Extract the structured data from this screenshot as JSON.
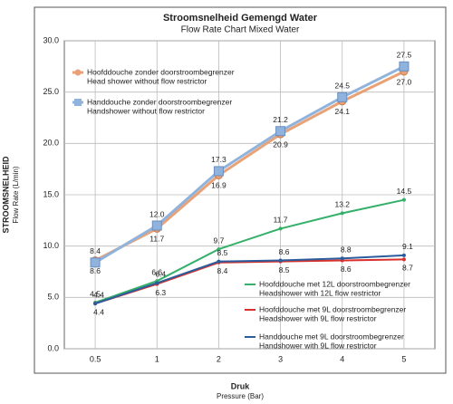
{
  "chart_data": {
    "type": "line",
    "title": "Stroomsnelheid Gemengd Water",
    "subtitle": "Flow Rate Chart Mixed Water",
    "y_label": "STROOMSNELHEID",
    "y_sublabel": "Flow Rate (L/min)",
    "x_label": "Druk",
    "x_sublabel": "Pressure (Bar)",
    "categories": [
      "0.5",
      "1",
      "2",
      "3",
      "4",
      "5"
    ],
    "ylim": [
      0,
      30
    ],
    "yticks": [
      {
        "value": 0,
        "label": "0.0"
      },
      {
        "value": 5,
        "label": "5.0"
      },
      {
        "value": 10,
        "label": "10.0"
      },
      {
        "value": 15,
        "label": "15.0"
      },
      {
        "value": 20,
        "label": "20.0"
      },
      {
        "value": 25,
        "label": "25.0"
      },
      {
        "value": 30,
        "label": "30.0"
      }
    ],
    "grid": true,
    "series": [
      {
        "name": "Hoofddouche zonder doorstroombegrenzer",
        "name_en": "Head shower without flow restrictor",
        "color": "#e9a277",
        "marker": "circle",
        "values": [
          8.6,
          11.7,
          16.9,
          20.9,
          24.1,
          27.0
        ],
        "value_labels": [
          "8.6",
          "11.7",
          "16.9",
          "20.9",
          "24.1",
          "27.0"
        ]
      },
      {
        "name": "Handdouche zonder doorstroombegrenzer",
        "name_en": "Handshower without flow restrictor",
        "color": "#8fb3dc",
        "marker": "square",
        "values": [
          8.4,
          12.0,
          17.3,
          21.2,
          24.5,
          27.5
        ],
        "value_labels": [
          "8.4",
          "12.0",
          "17.3",
          "21.2",
          "24.5",
          "27.5"
        ]
      },
      {
        "name": "Hoofddouche met 12L doorstroombegrenzer",
        "name_en": "Headshower with 12L flow restrictor",
        "color": "#35b06a",
        "marker": "dot",
        "values": [
          4.5,
          6.6,
          9.7,
          11.7,
          13.2,
          14.5
        ],
        "value_labels": [
          "4.5",
          "6.6",
          "9.7",
          "11.7",
          "13.2",
          "14.5"
        ]
      },
      {
        "name": "Hoofddouche met 9L doorstroombegrenzer",
        "name_en": "Headshower with 9L flow restrictor",
        "color": "#d8302c",
        "marker": "dot",
        "values": [
          4.4,
          6.3,
          8.4,
          8.5,
          8.6,
          8.7
        ],
        "value_labels": [
          "4.4",
          "6.3",
          "8.4",
          "8.5",
          "8.6",
          "8.7"
        ]
      },
      {
        "name": "Handdouche met 9L doorstroombegrenzer",
        "name_en": "Handshower with 9L flow restrictor",
        "color": "#2b5c9c",
        "marker": "dot",
        "values": [
          4.4,
          6.4,
          8.5,
          8.6,
          8.8,
          9.1
        ],
        "value_labels": [
          "4.4",
          "6.4",
          "8.5",
          "8.6",
          "8.8",
          "9.1"
        ]
      }
    ]
  }
}
